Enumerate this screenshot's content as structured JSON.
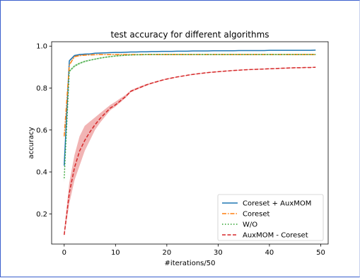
{
  "frame_color": "#3a5fcd",
  "chart_data": {
    "type": "line",
    "title": "test accuracy for different algorithms",
    "xlabel": "#iterations/50",
    "ylabel": "accuracy",
    "xlim": [
      -2.45,
      51.45
    ],
    "ylim": [
      0.056,
      1.021
    ],
    "xticks": [
      0,
      10,
      20,
      30,
      40,
      50
    ],
    "yticks": [
      0.2,
      0.4,
      0.6,
      0.8,
      1.0
    ],
    "ytick_labels": [
      "0.2",
      "0.4",
      "0.6",
      "0.8",
      "1.0"
    ],
    "grid": false,
    "legend_position": "lower right",
    "x": [
      0,
      1,
      2,
      3,
      4,
      5,
      6,
      7,
      8,
      9,
      10,
      11,
      12,
      13,
      14,
      15,
      16,
      17,
      18,
      19,
      20,
      21,
      22,
      23,
      24,
      25,
      26,
      27,
      28,
      29,
      30,
      31,
      32,
      33,
      34,
      35,
      36,
      37,
      38,
      39,
      40,
      41,
      42,
      43,
      44,
      45,
      46,
      47,
      48,
      49
    ],
    "series": [
      {
        "name": "Coreset + AuxMOM",
        "color": "#1f77b4",
        "dash": "solid",
        "values": [
          0.43,
          0.93,
          0.955,
          0.96,
          0.962,
          0.963,
          0.966,
          0.967,
          0.968,
          0.969,
          0.97,
          0.97,
          0.971,
          0.972,
          0.972,
          0.973,
          0.973,
          0.974,
          0.974,
          0.975,
          0.975,
          0.975,
          0.976,
          0.976,
          0.976,
          0.977,
          0.977,
          0.977,
          0.977,
          0.978,
          0.978,
          0.978,
          0.978,
          0.978,
          0.979,
          0.979,
          0.979,
          0.979,
          0.979,
          0.979,
          0.98,
          0.98,
          0.98,
          0.98,
          0.98,
          0.98,
          0.98,
          0.98,
          0.98,
          0.981
        ],
        "band_low": [
          0.41,
          0.925,
          0.951,
          0.957,
          0.96,
          0.961,
          0.964,
          0.965,
          0.966,
          0.967,
          0.968,
          0.968,
          0.969,
          0.97,
          0.97,
          0.971,
          0.971,
          0.972,
          0.972,
          0.973,
          0.973,
          0.973,
          0.974,
          0.974,
          0.974,
          0.975,
          0.975,
          0.975,
          0.975,
          0.976,
          0.976,
          0.976,
          0.976,
          0.976,
          0.977,
          0.977,
          0.977,
          0.977,
          0.977,
          0.977,
          0.978,
          0.978,
          0.978,
          0.978,
          0.978,
          0.978,
          0.978,
          0.978,
          0.978,
          0.979
        ],
        "band_high": [
          0.45,
          0.935,
          0.959,
          0.963,
          0.964,
          0.965,
          0.968,
          0.969,
          0.97,
          0.971,
          0.972,
          0.972,
          0.973,
          0.974,
          0.974,
          0.975,
          0.975,
          0.976,
          0.976,
          0.977,
          0.977,
          0.977,
          0.978,
          0.978,
          0.978,
          0.979,
          0.979,
          0.979,
          0.979,
          0.98,
          0.98,
          0.98,
          0.98,
          0.98,
          0.981,
          0.981,
          0.981,
          0.981,
          0.981,
          0.981,
          0.982,
          0.982,
          0.982,
          0.982,
          0.982,
          0.982,
          0.982,
          0.982,
          0.982,
          0.983
        ]
      },
      {
        "name": "Coreset",
        "color": "#ff7f0e",
        "dash": "dashdot",
        "values": [
          0.57,
          0.91,
          0.95,
          0.955,
          0.957,
          0.958,
          0.959,
          0.96,
          0.96,
          0.96,
          0.96,
          0.96,
          0.96,
          0.96,
          0.96,
          0.96,
          0.96,
          0.96,
          0.96,
          0.96,
          0.96,
          0.96,
          0.96,
          0.96,
          0.96,
          0.96,
          0.96,
          0.96,
          0.96,
          0.96,
          0.96,
          0.96,
          0.96,
          0.96,
          0.96,
          0.96,
          0.96,
          0.96,
          0.96,
          0.96,
          0.96,
          0.96,
          0.96,
          0.96,
          0.96,
          0.96,
          0.96,
          0.96,
          0.96,
          0.96
        ],
        "band_low": [
          0.55,
          0.905,
          0.946,
          0.952,
          0.955,
          0.956,
          0.957,
          0.958,
          0.958,
          0.958,
          0.958,
          0.958,
          0.958,
          0.958,
          0.958,
          0.958,
          0.958,
          0.958,
          0.958,
          0.958,
          0.958,
          0.958,
          0.958,
          0.958,
          0.958,
          0.958,
          0.958,
          0.958,
          0.958,
          0.958,
          0.958,
          0.958,
          0.958,
          0.958,
          0.958,
          0.958,
          0.958,
          0.958,
          0.958,
          0.958,
          0.958,
          0.958,
          0.958,
          0.958,
          0.958,
          0.958,
          0.958,
          0.958,
          0.958,
          0.958
        ],
        "band_high": [
          0.59,
          0.915,
          0.954,
          0.958,
          0.959,
          0.96,
          0.961,
          0.962,
          0.962,
          0.962,
          0.962,
          0.962,
          0.962,
          0.962,
          0.962,
          0.962,
          0.962,
          0.962,
          0.962,
          0.962,
          0.962,
          0.962,
          0.962,
          0.962,
          0.962,
          0.962,
          0.962,
          0.962,
          0.962,
          0.962,
          0.962,
          0.962,
          0.962,
          0.962,
          0.962,
          0.962,
          0.962,
          0.962,
          0.962,
          0.962,
          0.962,
          0.962,
          0.962,
          0.962,
          0.962,
          0.962,
          0.962,
          0.962,
          0.962,
          0.962
        ]
      },
      {
        "name": "W/O",
        "color": "#2ca02c",
        "dash": "dotted",
        "values": [
          0.37,
          0.88,
          0.905,
          0.918,
          0.927,
          0.933,
          0.938,
          0.943,
          0.947,
          0.95,
          0.953,
          0.955,
          0.957,
          0.958,
          0.959,
          0.959,
          0.96,
          0.96,
          0.96,
          0.96,
          0.96,
          0.96,
          0.96,
          0.96,
          0.96,
          0.96,
          0.96,
          0.96,
          0.96,
          0.96,
          0.96,
          0.96,
          0.96,
          0.96,
          0.96,
          0.96,
          0.96,
          0.96,
          0.96,
          0.96,
          0.96,
          0.96,
          0.96,
          0.96,
          0.96,
          0.96,
          0.96,
          0.96,
          0.96,
          0.96
        ],
        "band_low": [
          0.35,
          0.875,
          0.9,
          0.914,
          0.923,
          0.93,
          0.935,
          0.94,
          0.944,
          0.947,
          0.95,
          0.952,
          0.954,
          0.955,
          0.956,
          0.956,
          0.957,
          0.957,
          0.957,
          0.957,
          0.957,
          0.957,
          0.957,
          0.957,
          0.957,
          0.957,
          0.957,
          0.957,
          0.957,
          0.957,
          0.957,
          0.957,
          0.957,
          0.957,
          0.957,
          0.957,
          0.957,
          0.957,
          0.957,
          0.957,
          0.957,
          0.957,
          0.957,
          0.957,
          0.957,
          0.957,
          0.957,
          0.957,
          0.957,
          0.957
        ],
        "band_high": [
          0.39,
          0.885,
          0.91,
          0.922,
          0.931,
          0.936,
          0.941,
          0.946,
          0.95,
          0.953,
          0.956,
          0.958,
          0.96,
          0.961,
          0.962,
          0.962,
          0.963,
          0.963,
          0.963,
          0.963,
          0.963,
          0.963,
          0.963,
          0.963,
          0.963,
          0.963,
          0.963,
          0.963,
          0.963,
          0.963,
          0.963,
          0.963,
          0.963,
          0.963,
          0.963,
          0.963,
          0.963,
          0.963,
          0.963,
          0.963,
          0.963,
          0.963,
          0.963,
          0.963,
          0.963,
          0.963,
          0.963,
          0.963,
          0.963,
          0.963
        ]
      },
      {
        "name": "AuxMOM - Coreset",
        "color": "#d62728",
        "dash": "dashed",
        "values": [
          0.1,
          0.3,
          0.42,
          0.5,
          0.55,
          0.59,
          0.625,
          0.655,
          0.68,
          0.705,
          0.72,
          0.74,
          0.76,
          0.785,
          0.795,
          0.805,
          0.815,
          0.823,
          0.83,
          0.837,
          0.843,
          0.848,
          0.853,
          0.857,
          0.861,
          0.865,
          0.868,
          0.871,
          0.874,
          0.876,
          0.878,
          0.88,
          0.882,
          0.884,
          0.885,
          0.887,
          0.888,
          0.889,
          0.89,
          0.891,
          0.892,
          0.893,
          0.894,
          0.895,
          0.896,
          0.897,
          0.897,
          0.898,
          0.898,
          0.899
        ],
        "band_low": [
          0.09,
          0.25,
          0.36,
          0.43,
          0.5,
          0.55,
          0.6,
          0.635,
          0.665,
          0.695,
          0.712,
          0.733,
          0.754,
          0.78,
          0.791,
          0.801,
          0.811,
          0.82,
          0.827,
          0.834,
          0.841,
          0.846,
          0.851,
          0.855,
          0.859,
          0.863,
          0.866,
          0.869,
          0.872,
          0.874,
          0.876,
          0.878,
          0.88,
          0.882,
          0.883,
          0.885,
          0.886,
          0.887,
          0.888,
          0.889,
          0.89,
          0.891,
          0.892,
          0.893,
          0.894,
          0.895,
          0.895,
          0.896,
          0.896,
          0.897
        ],
        "band_high": [
          0.12,
          0.35,
          0.48,
          0.57,
          0.62,
          0.64,
          0.66,
          0.68,
          0.7,
          0.72,
          0.735,
          0.752,
          0.768,
          0.79,
          0.8,
          0.81,
          0.819,
          0.826,
          0.833,
          0.84,
          0.846,
          0.851,
          0.855,
          0.859,
          0.863,
          0.867,
          0.87,
          0.873,
          0.876,
          0.878,
          0.88,
          0.882,
          0.884,
          0.886,
          0.887,
          0.889,
          0.89,
          0.891,
          0.892,
          0.893,
          0.894,
          0.895,
          0.896,
          0.897,
          0.898,
          0.899,
          0.899,
          0.9,
          0.9,
          0.901
        ]
      }
    ]
  }
}
